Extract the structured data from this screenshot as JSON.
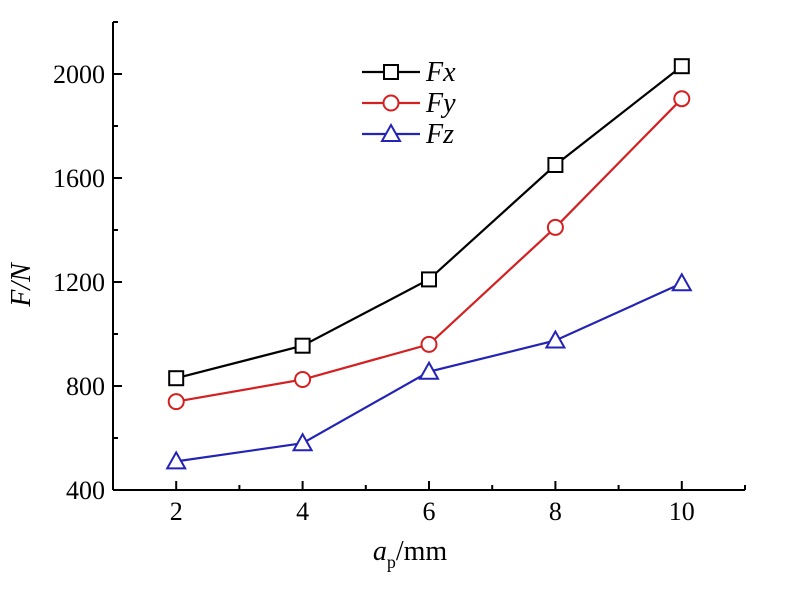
{
  "chart_data": {
    "type": "line",
    "x": [
      2,
      4,
      6,
      8,
      10
    ],
    "xlabel": {
      "main": "a",
      "sub": "p",
      "unit": "/mm"
    },
    "ylabel": "F/N",
    "xlim": [
      1,
      11
    ],
    "ylim": [
      400,
      2200
    ],
    "xticks": [
      2,
      4,
      6,
      8,
      10
    ],
    "yticks": [
      400,
      800,
      1200,
      1600,
      2000
    ],
    "grid": false,
    "legend_position": "top-center",
    "series": [
      {
        "name": "Fx",
        "color": "#000000",
        "marker": "square",
        "values": [
          830,
          955,
          1210,
          1650,
          2030
        ]
      },
      {
        "name": "Fy",
        "color": "#d42020",
        "marker": "circle",
        "values": [
          740,
          825,
          960,
          1410,
          1905
        ]
      },
      {
        "name": "Fz",
        "color": "#2323b5",
        "marker": "triangle",
        "values": [
          510,
          580,
          855,
          975,
          1195
        ]
      }
    ]
  }
}
